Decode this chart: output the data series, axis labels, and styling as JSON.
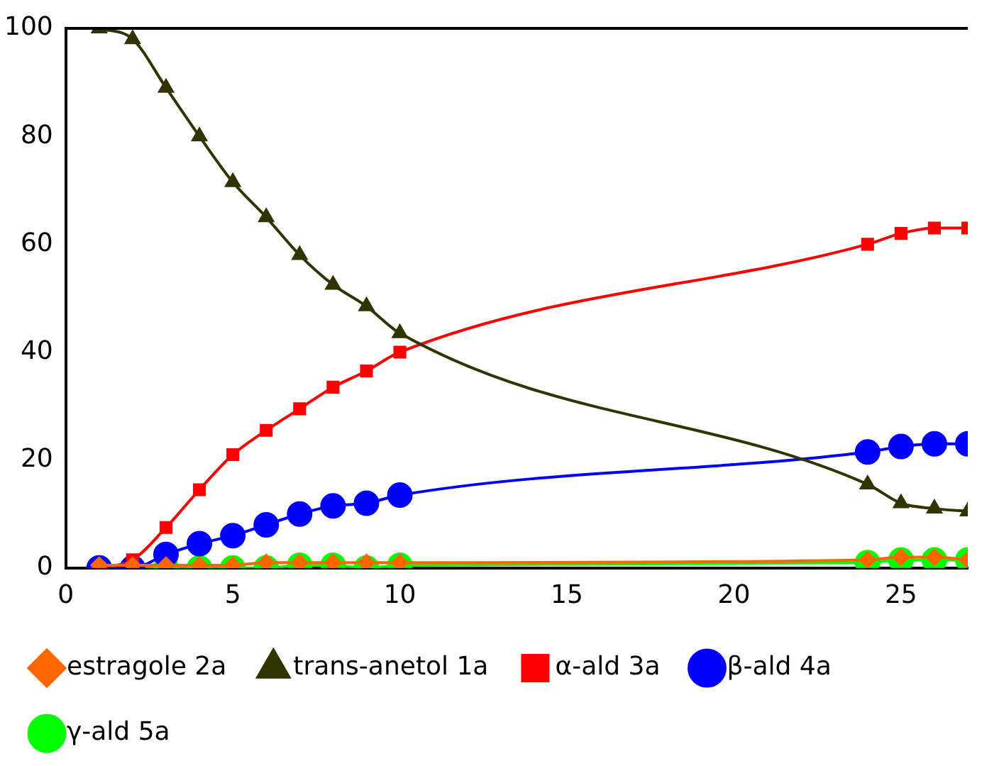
{
  "chart_data": {
    "type": "line",
    "x": [
      1,
      2,
      3,
      4,
      5,
      6,
      7,
      8,
      9,
      10,
      24,
      25,
      26,
      27
    ],
    "xlim": [
      0,
      27
    ],
    "xticks": [
      0,
      5,
      10,
      15,
      20,
      25
    ],
    "ylim": [
      0,
      100
    ],
    "yticks": [
      0,
      20,
      40,
      60,
      80,
      100
    ],
    "grid": false,
    "legend": "bottom",
    "series": [
      {
        "name": "estragole 2a",
        "color": "#ff6600",
        "marker": "diamond",
        "values": [
          0.5,
          0.5,
          0.5,
          0.5,
          0.5,
          1,
          1,
          1,
          1,
          1,
          1.5,
          2,
          2,
          1.5
        ]
      },
      {
        "name": "trans-anetol 1a",
        "color": "#333300",
        "marker": "triangle",
        "values": [
          100,
          98,
          89,
          80,
          71.5,
          65,
          58,
          52.5,
          48.5,
          43.5,
          15.5,
          12,
          11,
          10.5
        ]
      },
      {
        "name": "α-ald 3a",
        "color": "#ff0000",
        "marker": "square",
        "values": [
          0,
          1.5,
          7.5,
          14.5,
          21,
          25.5,
          29.5,
          33.5,
          36.5,
          40,
          60,
          62,
          63,
          63
        ]
      },
      {
        "name": "β-ald 4a",
        "color": "#0000ff",
        "marker": "circle",
        "values": [
          0,
          0,
          2.5,
          4.5,
          6,
          8,
          10,
          11.5,
          12,
          13.5,
          21.5,
          22.5,
          23,
          23
        ]
      },
      {
        "name": "γ-ald 5a",
        "color": "#00ff00",
        "marker": "circle",
        "values": [
          0,
          0,
          0,
          0,
          0,
          0,
          0.5,
          0.5,
          0,
          0.5,
          1,
          1.5,
          1.5,
          1.5
        ]
      }
    ]
  }
}
